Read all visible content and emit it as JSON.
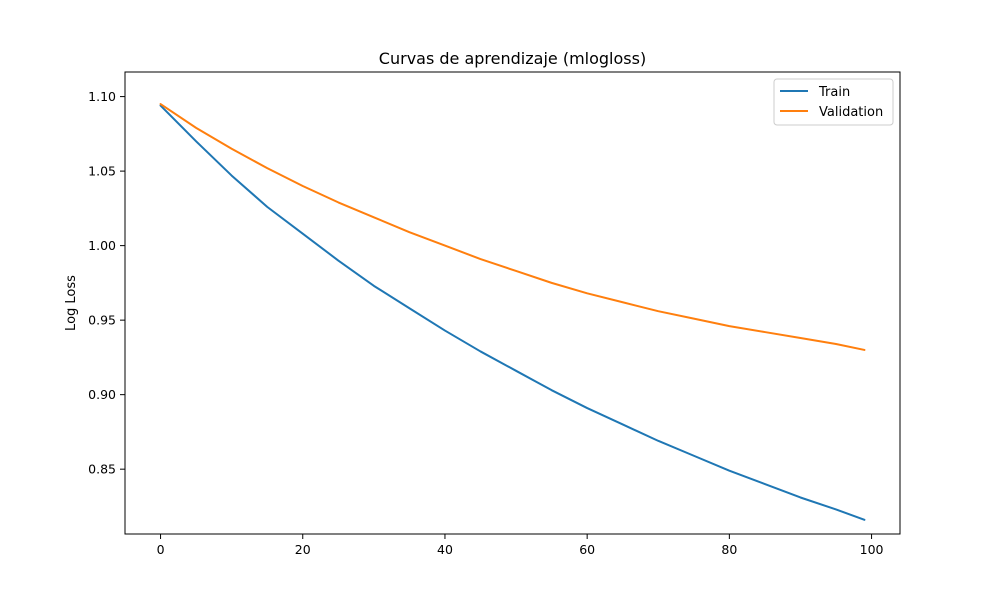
{
  "chart_data": {
    "type": "line",
    "title": "Curvas de aprendizaje (mlogloss)",
    "xlabel": "",
    "ylabel": "Log Loss",
    "xlim": [
      -5,
      104
    ],
    "ylim": [
      0.8065,
      1.1165
    ],
    "x_ticks": [
      0,
      20,
      40,
      60,
      80,
      100
    ],
    "y_ticks": [
      0.85,
      0.9,
      0.95,
      1.0,
      1.05,
      1.1
    ],
    "y_tick_labels": [
      "0.85",
      "0.90",
      "0.95",
      "1.00",
      "1.05",
      "1.10"
    ],
    "grid": false,
    "legend_position": "top-right",
    "series": [
      {
        "name": "Train",
        "color": "#1f77b4",
        "x": [
          0,
          5,
          10,
          15,
          20,
          25,
          30,
          35,
          40,
          45,
          50,
          55,
          60,
          65,
          70,
          75,
          80,
          85,
          90,
          95,
          99
        ],
        "y": [
          1.094,
          1.07,
          1.047,
          1.026,
          1.008,
          0.99,
          0.973,
          0.958,
          0.943,
          0.929,
          0.916,
          0.903,
          0.891,
          0.88,
          0.869,
          0.859,
          0.849,
          0.84,
          0.831,
          0.823,
          0.816
        ]
      },
      {
        "name": "Validation",
        "color": "#ff7f0e",
        "x": [
          0,
          5,
          10,
          15,
          20,
          25,
          30,
          35,
          40,
          45,
          50,
          55,
          60,
          65,
          70,
          75,
          80,
          85,
          90,
          95,
          99
        ],
        "y": [
          1.095,
          1.079,
          1.065,
          1.052,
          1.04,
          1.029,
          1.019,
          1.009,
          1.0,
          0.991,
          0.983,
          0.975,
          0.968,
          0.962,
          0.956,
          0.951,
          0.946,
          0.942,
          0.938,
          0.934,
          0.93
        ]
      }
    ]
  }
}
